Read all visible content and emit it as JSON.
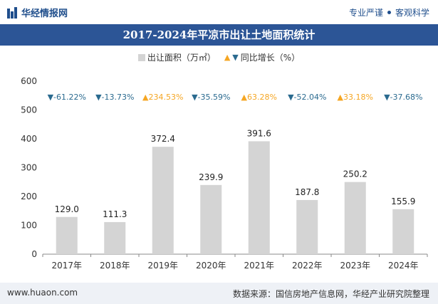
{
  "header": {
    "brand": "华经情报网",
    "tags": [
      "专业严谨",
      "客观科学"
    ]
  },
  "chart_data": {
    "type": "bar",
    "title": "2017-2024年平凉市出让土地面积统计",
    "categories": [
      "2017年",
      "2018年",
      "2019年",
      "2020年",
      "2021年",
      "2022年",
      "2023年",
      "2024年"
    ],
    "series": [
      {
        "name": "出让面积（万㎡）",
        "values": [
          129.0,
          111.3,
          372.4,
          239.9,
          391.6,
          187.8,
          250.2,
          155.9
        ],
        "color": "#d4d4d4"
      }
    ],
    "growth": {
      "name": "同比增长（%）",
      "labels": [
        "-61.22%",
        "-13.73%",
        "234.53%",
        "-35.59%",
        "63.28%",
        "-52.04%",
        "33.18%",
        "-37.68%"
      ],
      "up_color": "#f5a623",
      "down_color": "#2a6a8f"
    },
    "yticks": [
      0,
      100,
      200,
      300,
      400,
      500,
      600
    ],
    "ylim": [
      0,
      600
    ],
    "legend_position": "top-center"
  },
  "footer": {
    "website": "www.huaon.com",
    "source": "数据来源：国信房地产信息网，华经产业研究院整理"
  }
}
